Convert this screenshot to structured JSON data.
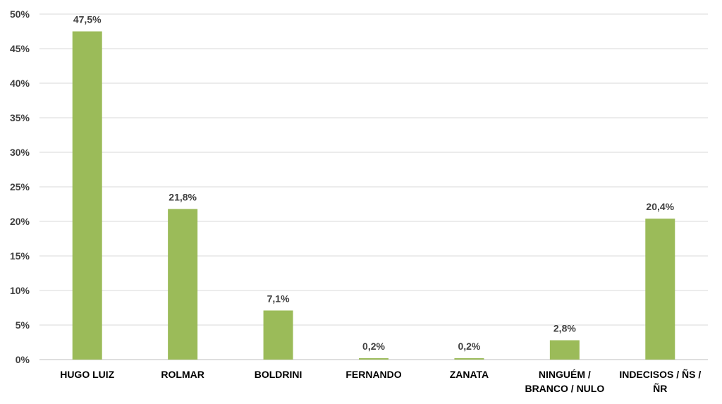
{
  "chart_data": {
    "type": "bar",
    "categories": [
      [
        "HUGO LUIZ"
      ],
      [
        "ROLMAR"
      ],
      [
        "BOLDRINI"
      ],
      [
        "FERNANDO"
      ],
      [
        "ZANATA"
      ],
      [
        "NINGUÉM /",
        "BRANCO / NULO"
      ],
      [
        "INDECISOS / ÑS /",
        "ÑR"
      ]
    ],
    "values": [
      47.5,
      21.8,
      7.1,
      0.2,
      0.2,
      2.8,
      20.4
    ],
    "data_labels": [
      "47,5%",
      "21,8%",
      "7,1%",
      "0,2%",
      "0,2%",
      "2,8%",
      "20,4%"
    ],
    "y_ticks": [
      "0%",
      "5%",
      "10%",
      "15%",
      "20%",
      "25%",
      "30%",
      "35%",
      "40%",
      "45%",
      "50%"
    ],
    "ylim": [
      0,
      50
    ],
    "grid": true,
    "bar_color": "#9bbb59",
    "title": "",
    "xlabel": "",
    "ylabel": ""
  }
}
